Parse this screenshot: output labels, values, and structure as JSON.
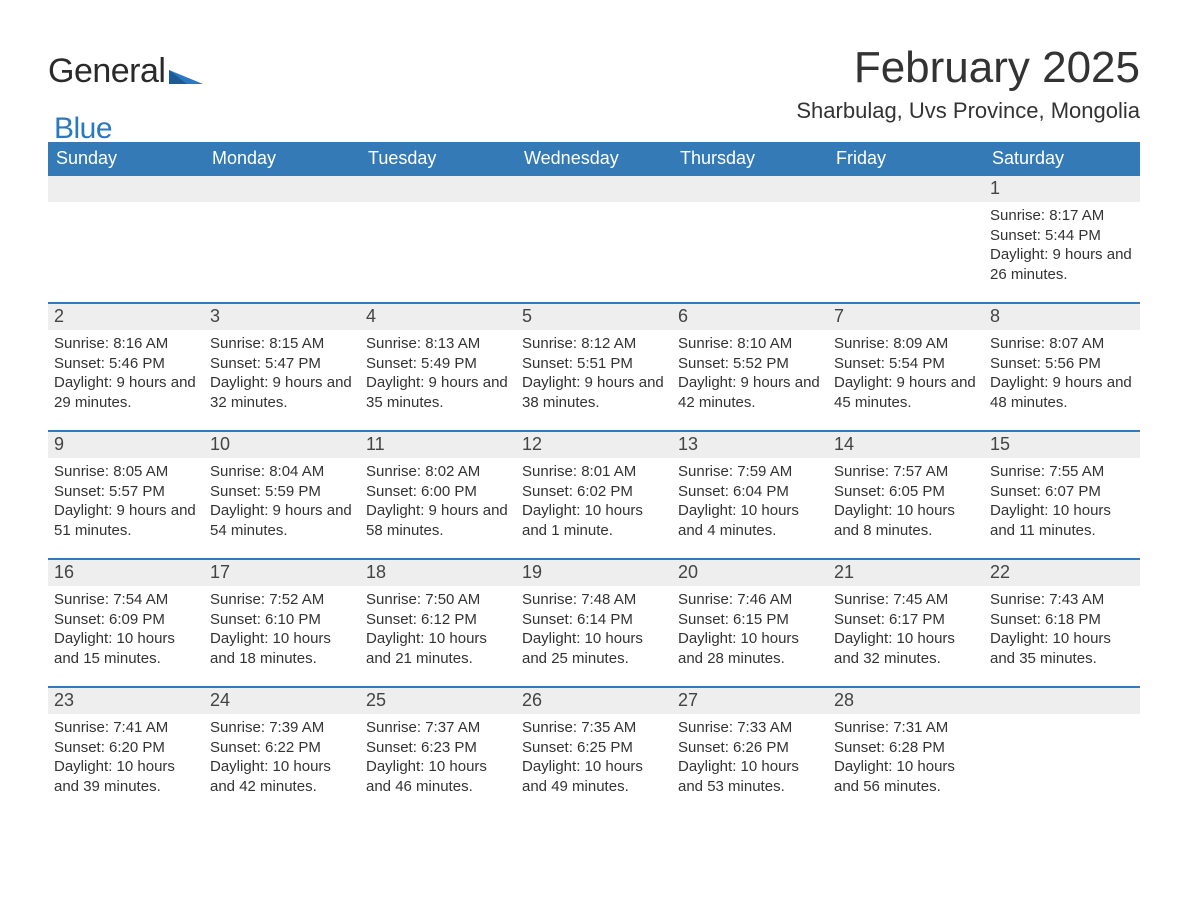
{
  "logo": {
    "general": "General",
    "blue": "Blue"
  },
  "title": "February 2025",
  "location": "Sharbulag, Uvs Province, Mongolia",
  "colors": {
    "header_blue": "#337ab7",
    "grey_band": "#eeeeee",
    "logo_blue": "#2878c4",
    "text": "#333333",
    "background": "#ffffff"
  },
  "daysOfWeek": [
    "Sunday",
    "Monday",
    "Tuesday",
    "Wednesday",
    "Thursday",
    "Friday",
    "Saturday"
  ],
  "weeks": [
    [
      {},
      {},
      {},
      {},
      {},
      {},
      {
        "n": "1",
        "sunrise": "Sunrise: 8:17 AM",
        "sunset": "Sunset: 5:44 PM",
        "daylight": "Daylight: 9 hours and 26 minutes."
      }
    ],
    [
      {
        "n": "2",
        "sunrise": "Sunrise: 8:16 AM",
        "sunset": "Sunset: 5:46 PM",
        "daylight": "Daylight: 9 hours and 29 minutes."
      },
      {
        "n": "3",
        "sunrise": "Sunrise: 8:15 AM",
        "sunset": "Sunset: 5:47 PM",
        "daylight": "Daylight: 9 hours and 32 minutes."
      },
      {
        "n": "4",
        "sunrise": "Sunrise: 8:13 AM",
        "sunset": "Sunset: 5:49 PM",
        "daylight": "Daylight: 9 hours and 35 minutes."
      },
      {
        "n": "5",
        "sunrise": "Sunrise: 8:12 AM",
        "sunset": "Sunset: 5:51 PM",
        "daylight": "Daylight: 9 hours and 38 minutes."
      },
      {
        "n": "6",
        "sunrise": "Sunrise: 8:10 AM",
        "sunset": "Sunset: 5:52 PM",
        "daylight": "Daylight: 9 hours and 42 minutes."
      },
      {
        "n": "7",
        "sunrise": "Sunrise: 8:09 AM",
        "sunset": "Sunset: 5:54 PM",
        "daylight": "Daylight: 9 hours and 45 minutes."
      },
      {
        "n": "8",
        "sunrise": "Sunrise: 8:07 AM",
        "sunset": "Sunset: 5:56 PM",
        "daylight": "Daylight: 9 hours and 48 minutes."
      }
    ],
    [
      {
        "n": "9",
        "sunrise": "Sunrise: 8:05 AM",
        "sunset": "Sunset: 5:57 PM",
        "daylight": "Daylight: 9 hours and 51 minutes."
      },
      {
        "n": "10",
        "sunrise": "Sunrise: 8:04 AM",
        "sunset": "Sunset: 5:59 PM",
        "daylight": "Daylight: 9 hours and 54 minutes."
      },
      {
        "n": "11",
        "sunrise": "Sunrise: 8:02 AM",
        "sunset": "Sunset: 6:00 PM",
        "daylight": "Daylight: 9 hours and 58 minutes."
      },
      {
        "n": "12",
        "sunrise": "Sunrise: 8:01 AM",
        "sunset": "Sunset: 6:02 PM",
        "daylight": "Daylight: 10 hours and 1 minute."
      },
      {
        "n": "13",
        "sunrise": "Sunrise: 7:59 AM",
        "sunset": "Sunset: 6:04 PM",
        "daylight": "Daylight: 10 hours and 4 minutes."
      },
      {
        "n": "14",
        "sunrise": "Sunrise: 7:57 AM",
        "sunset": "Sunset: 6:05 PM",
        "daylight": "Daylight: 10 hours and 8 minutes."
      },
      {
        "n": "15",
        "sunrise": "Sunrise: 7:55 AM",
        "sunset": "Sunset: 6:07 PM",
        "daylight": "Daylight: 10 hours and 11 minutes."
      }
    ],
    [
      {
        "n": "16",
        "sunrise": "Sunrise: 7:54 AM",
        "sunset": "Sunset: 6:09 PM",
        "daylight": "Daylight: 10 hours and 15 minutes."
      },
      {
        "n": "17",
        "sunrise": "Sunrise: 7:52 AM",
        "sunset": "Sunset: 6:10 PM",
        "daylight": "Daylight: 10 hours and 18 minutes."
      },
      {
        "n": "18",
        "sunrise": "Sunrise: 7:50 AM",
        "sunset": "Sunset: 6:12 PM",
        "daylight": "Daylight: 10 hours and 21 minutes."
      },
      {
        "n": "19",
        "sunrise": "Sunrise: 7:48 AM",
        "sunset": "Sunset: 6:14 PM",
        "daylight": "Daylight: 10 hours and 25 minutes."
      },
      {
        "n": "20",
        "sunrise": "Sunrise: 7:46 AM",
        "sunset": "Sunset: 6:15 PM",
        "daylight": "Daylight: 10 hours and 28 minutes."
      },
      {
        "n": "21",
        "sunrise": "Sunrise: 7:45 AM",
        "sunset": "Sunset: 6:17 PM",
        "daylight": "Daylight: 10 hours and 32 minutes."
      },
      {
        "n": "22",
        "sunrise": "Sunrise: 7:43 AM",
        "sunset": "Sunset: 6:18 PM",
        "daylight": "Daylight: 10 hours and 35 minutes."
      }
    ],
    [
      {
        "n": "23",
        "sunrise": "Sunrise: 7:41 AM",
        "sunset": "Sunset: 6:20 PM",
        "daylight": "Daylight: 10 hours and 39 minutes."
      },
      {
        "n": "24",
        "sunrise": "Sunrise: 7:39 AM",
        "sunset": "Sunset: 6:22 PM",
        "daylight": "Daylight: 10 hours and 42 minutes."
      },
      {
        "n": "25",
        "sunrise": "Sunrise: 7:37 AM",
        "sunset": "Sunset: 6:23 PM",
        "daylight": "Daylight: 10 hours and 46 minutes."
      },
      {
        "n": "26",
        "sunrise": "Sunrise: 7:35 AM",
        "sunset": "Sunset: 6:25 PM",
        "daylight": "Daylight: 10 hours and 49 minutes."
      },
      {
        "n": "27",
        "sunrise": "Sunrise: 7:33 AM",
        "sunset": "Sunset: 6:26 PM",
        "daylight": "Daylight: 10 hours and 53 minutes."
      },
      {
        "n": "28",
        "sunrise": "Sunrise: 7:31 AM",
        "sunset": "Sunset: 6:28 PM",
        "daylight": "Daylight: 10 hours and 56 minutes."
      },
      {}
    ]
  ]
}
